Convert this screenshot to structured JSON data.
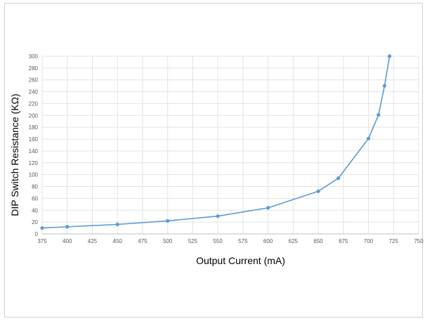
{
  "chart_data": {
    "type": "line",
    "xlabel": "Output Current (mA)",
    "ylabel": "DIP Switch Resistance (KΩ)",
    "xlim": [
      375,
      750
    ],
    "ylim": [
      0,
      300
    ],
    "x_ticks": [
      375,
      400,
      425,
      450,
      475,
      500,
      525,
      550,
      575,
      600,
      625,
      650,
      675,
      700,
      725,
      750
    ],
    "y_ticks": [
      0,
      20,
      40,
      60,
      80,
      100,
      120,
      140,
      160,
      180,
      200,
      220,
      240,
      260,
      280,
      300
    ],
    "grid": true,
    "series": [
      {
        "color": "#5b9bd5",
        "x": [
          375,
          400,
          450,
          500,
          550,
          600,
          650,
          670,
          700,
          710,
          716,
          721
        ],
        "y": [
          10,
          12,
          16,
          22,
          30,
          44,
          72,
          94,
          161,
          201,
          250,
          300
        ]
      }
    ]
  }
}
